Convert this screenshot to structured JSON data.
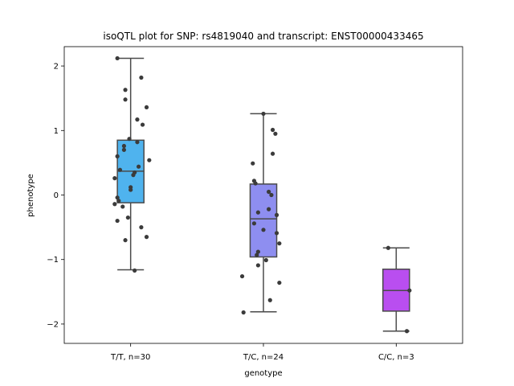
{
  "chart_data": {
    "type": "box",
    "title": "isoQTL plot for SNP: rs4819040 and transcript: ENST00000433465",
    "xlabel": "genotype",
    "ylabel": "phenotype",
    "ylim": [
      -2.3,
      2.3
    ],
    "yticks": [
      -2,
      -1,
      0,
      1,
      2
    ],
    "ytick_labels": [
      "−2",
      "−1",
      "0",
      "1",
      "2"
    ],
    "categories": [
      "T/T, n=30",
      "T/C, n=24",
      "C/C, n=3"
    ],
    "colors": [
      "#4fb3ee",
      "#8e8ef0",
      "#b94ef0"
    ],
    "boxes": [
      {
        "whisker_low": -1.16,
        "q1": -0.12,
        "median": 0.37,
        "q3": 0.85,
        "whisker_high": 2.12
      },
      {
        "whisker_low": -1.81,
        "q1": -0.96,
        "median": -0.37,
        "q3": 0.17,
        "whisker_high": 1.26
      },
      {
        "whisker_low": -2.11,
        "q1": -1.8,
        "median": -1.48,
        "q3": -1.15,
        "whisker_high": -0.82
      }
    ],
    "points": [
      {
        "group": 0,
        "jitter": -0.1,
        "y": 2.12
      },
      {
        "group": 0,
        "jitter": 0.08,
        "y": 1.82
      },
      {
        "group": 0,
        "jitter": -0.04,
        "y": 1.63
      },
      {
        "group": 0,
        "jitter": -0.04,
        "y": 1.48
      },
      {
        "group": 0,
        "jitter": 0.12,
        "y": 1.36
      },
      {
        "group": 0,
        "jitter": 0.05,
        "y": 1.17
      },
      {
        "group": 0,
        "jitter": 0.09,
        "y": 1.09
      },
      {
        "group": 0,
        "jitter": -0.01,
        "y": 0.87
      },
      {
        "group": 0,
        "jitter": 0.05,
        "y": 0.82
      },
      {
        "group": 0,
        "jitter": -0.05,
        "y": 0.76
      },
      {
        "group": 0,
        "jitter": -0.05,
        "y": 0.7
      },
      {
        "group": 0,
        "jitter": -0.1,
        "y": 0.6
      },
      {
        "group": 0,
        "jitter": 0.14,
        "y": 0.54
      },
      {
        "group": 0,
        "jitter": 0.06,
        "y": 0.44
      },
      {
        "group": 0,
        "jitter": -0.08,
        "y": 0.39
      },
      {
        "group": 0,
        "jitter": 0.03,
        "y": 0.35
      },
      {
        "group": 0,
        "jitter": 0.02,
        "y": 0.31
      },
      {
        "group": 0,
        "jitter": -0.12,
        "y": 0.26
      },
      {
        "group": 0,
        "jitter": 0.0,
        "y": 0.12
      },
      {
        "group": 0,
        "jitter": 0.0,
        "y": 0.08
      },
      {
        "group": 0,
        "jitter": -0.1,
        "y": -0.04
      },
      {
        "group": 0,
        "jitter": -0.09,
        "y": -0.09
      },
      {
        "group": 0,
        "jitter": -0.12,
        "y": -0.14
      },
      {
        "group": 0,
        "jitter": -0.06,
        "y": -0.18
      },
      {
        "group": 0,
        "jitter": -0.02,
        "y": -0.35
      },
      {
        "group": 0,
        "jitter": -0.1,
        "y": -0.4
      },
      {
        "group": 0,
        "jitter": 0.08,
        "y": -0.5
      },
      {
        "group": 0,
        "jitter": 0.12,
        "y": -0.65
      },
      {
        "group": 0,
        "jitter": -0.04,
        "y": -0.7
      },
      {
        "group": 0,
        "jitter": 0.03,
        "y": -1.17
      },
      {
        "group": 1,
        "jitter": 0.0,
        "y": 1.26
      },
      {
        "group": 1,
        "jitter": 0.07,
        "y": 1.01
      },
      {
        "group": 1,
        "jitter": 0.09,
        "y": 0.95
      },
      {
        "group": 1,
        "jitter": 0.07,
        "y": 0.64
      },
      {
        "group": 1,
        "jitter": -0.08,
        "y": 0.49
      },
      {
        "group": 1,
        "jitter": -0.07,
        "y": 0.22
      },
      {
        "group": 1,
        "jitter": -0.06,
        "y": 0.18
      },
      {
        "group": 1,
        "jitter": 0.04,
        "y": 0.05
      },
      {
        "group": 1,
        "jitter": 0.06,
        "y": 0.0
      },
      {
        "group": 1,
        "jitter": 0.04,
        "y": -0.22
      },
      {
        "group": 1,
        "jitter": -0.04,
        "y": -0.27
      },
      {
        "group": 1,
        "jitter": 0.1,
        "y": -0.31
      },
      {
        "group": 1,
        "jitter": -0.07,
        "y": -0.44
      },
      {
        "group": 1,
        "jitter": 0.0,
        "y": -0.54
      },
      {
        "group": 1,
        "jitter": 0.1,
        "y": -0.59
      },
      {
        "group": 1,
        "jitter": 0.12,
        "y": -0.75
      },
      {
        "group": 1,
        "jitter": -0.04,
        "y": -0.88
      },
      {
        "group": 1,
        "jitter": -0.05,
        "y": -0.93
      },
      {
        "group": 1,
        "jitter": 0.02,
        "y": -1.01
      },
      {
        "group": 1,
        "jitter": -0.04,
        "y": -1.09
      },
      {
        "group": 1,
        "jitter": -0.16,
        "y": -1.26
      },
      {
        "group": 1,
        "jitter": 0.12,
        "y": -1.36
      },
      {
        "group": 1,
        "jitter": 0.05,
        "y": -1.63
      },
      {
        "group": 1,
        "jitter": -0.15,
        "y": -1.82
      },
      {
        "group": 2,
        "jitter": -0.06,
        "y": -0.82
      },
      {
        "group": 2,
        "jitter": 0.1,
        "y": -1.48
      },
      {
        "group": 2,
        "jitter": 0.08,
        "y": -2.11
      }
    ]
  }
}
